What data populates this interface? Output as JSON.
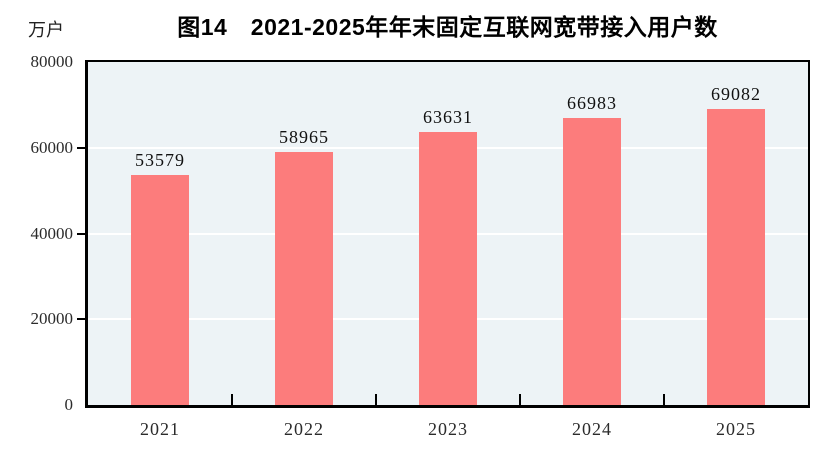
{
  "chart_data": {
    "type": "bar",
    "title": "图14　2021-2025年年末固定互联网宽带接入用户数",
    "unit_label": "万户",
    "categories": [
      "2021",
      "2022",
      "2023",
      "2024",
      "2025"
    ],
    "values": [
      53579,
      58965,
      63631,
      66983,
      69082
    ],
    "ylim": [
      0,
      80000
    ],
    "yticks": [
      0,
      20000,
      40000,
      60000,
      80000
    ],
    "xlabel": "",
    "ylabel": "万户",
    "legend_position": "none",
    "grid": "horizontal",
    "colors": {
      "bar": "#FC7C7C",
      "plot_background": "#EDF3F6",
      "gridline": "#FFFFFF",
      "axis": "#000000",
      "text": "#1a1a1a"
    }
  }
}
